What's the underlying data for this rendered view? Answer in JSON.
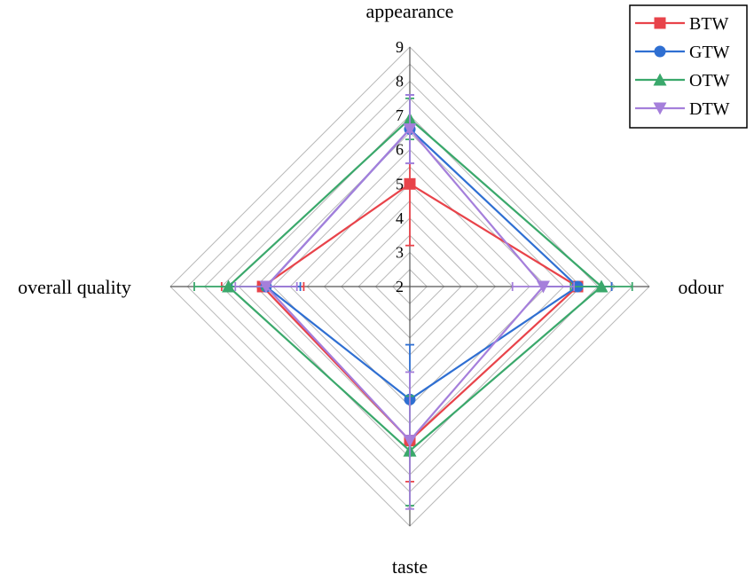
{
  "chart_data": {
    "type": "radar",
    "axes": [
      "appearance",
      "odour",
      "taste",
      "overall quality"
    ],
    "r_ticks": [
      "2",
      "3",
      "4",
      "5",
      "6",
      "7",
      "8",
      "9"
    ],
    "r_range": [
      2,
      9
    ],
    "grid": true,
    "legend_position": "top-right",
    "series": [
      {
        "name": "BTW",
        "marker": "square",
        "color": "#e8434a",
        "values": [
          5.0,
          6.9,
          6.5,
          6.3
        ],
        "errors": [
          1.8,
          1.0,
          1.2,
          1.2
        ]
      },
      {
        "name": "GTW",
        "marker": "circle",
        "color": "#2f6fd2",
        "values": [
          6.6,
          6.9,
          5.3,
          6.2
        ],
        "errors": [
          1.0,
          1.0,
          1.6,
          1.0
        ]
      },
      {
        "name": "OTW",
        "marker": "triangle-up",
        "color": "#3aa86b",
        "values": [
          6.9,
          7.6,
          6.8,
          7.3
        ],
        "errors": [
          0.6,
          0.9,
          1.6,
          1.0
        ]
      },
      {
        "name": "DTW",
        "marker": "triangle-down",
        "color": "#a57fdb",
        "values": [
          6.6,
          5.9,
          6.5,
          6.2
        ],
        "errors": [
          1.0,
          0.9,
          2.0,
          0.9
        ]
      }
    ]
  }
}
